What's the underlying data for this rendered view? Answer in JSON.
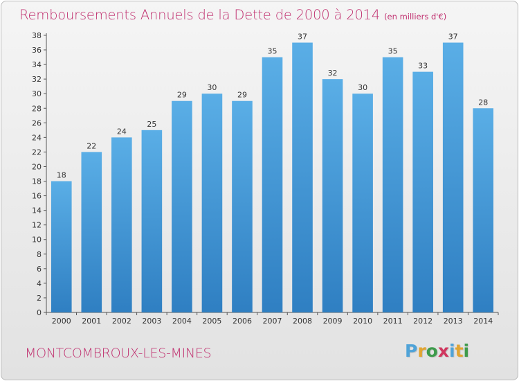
{
  "header": {
    "title": "Remboursements Annuels de la Dette de 2000 à 2014",
    "unit": "(en milliers d'€)"
  },
  "footer": {
    "commune": "MONTCOMBROUX-LES-MINES",
    "brand": "Proxiti"
  },
  "colors": {
    "title": "#c0306f",
    "bar_top": "#5aaee6",
    "bar_bottom": "#2f7fc2",
    "brand": [
      "#4fa3d8",
      "#e2a531",
      "#3e9b4c",
      "#d0375f",
      "#4fa3d8",
      "#e2a531",
      "#3e9b4c"
    ]
  },
  "chart_data": {
    "type": "bar",
    "title": "Remboursements Annuels de la Dette de 2000 à 2014",
    "xlabel": "",
    "ylabel": "en milliers d'€",
    "categories": [
      "2000",
      "2001",
      "2002",
      "2003",
      "2004",
      "2005",
      "2006",
      "2007",
      "2008",
      "2009",
      "2010",
      "2011",
      "2012",
      "2013",
      "2014"
    ],
    "values": [
      18,
      22,
      24,
      25,
      29,
      30,
      29,
      35,
      37,
      32,
      30,
      35,
      33,
      37,
      28
    ],
    "ylim": [
      0,
      38
    ],
    "ytick_step": 2,
    "grid": false,
    "data_labels": true
  }
}
